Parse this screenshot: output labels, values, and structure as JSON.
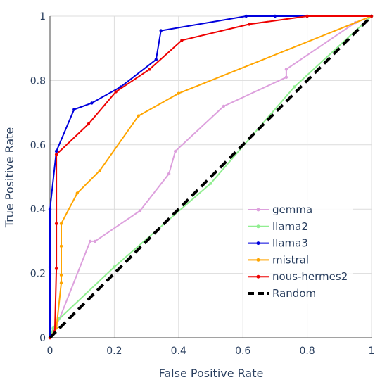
{
  "chart_data": {
    "type": "line",
    "title": "",
    "xlabel": "False Positive Rate",
    "ylabel": "True Positive Rate",
    "xlim": [
      0,
      1
    ],
    "ylim": [
      0,
      1
    ],
    "x_ticks": [
      0,
      0.2,
      0.4,
      0.6,
      0.8,
      1
    ],
    "y_ticks": [
      0,
      0.2,
      0.4,
      0.6,
      0.8,
      1
    ],
    "x_tick_labels": [
      "0",
      "0.2",
      "0.4",
      "0.6",
      "0.8",
      "1"
    ],
    "y_tick_labels": [
      "0",
      "0.2",
      "0.4",
      "0.6",
      "0.8",
      "1"
    ],
    "grid": true,
    "legend_position": "bottom-right",
    "series": [
      {
        "name": "gemma",
        "color": "#dda0dd",
        "dash": "solid",
        "markers": true,
        "points": [
          [
            0,
            0
          ],
          [
            0.01,
            0.02
          ],
          [
            0.02,
            0.04
          ],
          [
            0.03,
            0.06
          ],
          [
            0.125,
            0.3
          ],
          [
            0.14,
            0.3
          ],
          [
            0.28,
            0.395
          ],
          [
            0.37,
            0.51
          ],
          [
            0.39,
            0.58
          ],
          [
            0.54,
            0.72
          ],
          [
            0.735,
            0.81
          ],
          [
            0.735,
            0.835
          ],
          [
            0.95,
            0.98
          ],
          [
            1,
            1
          ]
        ]
      },
      {
        "name": "llama2",
        "color": "#90ee90",
        "dash": "solid",
        "markers": true,
        "points": [
          [
            0,
            0
          ],
          [
            0.01,
            0.03
          ],
          [
            0.03,
            0.06
          ],
          [
            0.2,
            0.22
          ],
          [
            0.5,
            0.48
          ],
          [
            0.76,
            0.78
          ],
          [
            1,
            1
          ]
        ]
      },
      {
        "name": "llama3",
        "color": "#0000dd",
        "dash": "solid",
        "markers": true,
        "points": [
          [
            0,
            0
          ],
          [
            0,
            0.22
          ],
          [
            0,
            0.4
          ],
          [
            0.02,
            0.58
          ],
          [
            0.075,
            0.71
          ],
          [
            0.13,
            0.73
          ],
          [
            0.22,
            0.78
          ],
          [
            0.33,
            0.865
          ],
          [
            0.345,
            0.955
          ],
          [
            0.61,
            1
          ],
          [
            0.7,
            1
          ],
          [
            0.8,
            1
          ],
          [
            1,
            1
          ]
        ]
      },
      {
        "name": "mistral",
        "color": "#ffa500",
        "dash": "solid",
        "markers": true,
        "points": [
          [
            0,
            0
          ],
          [
            0.02,
            0.03
          ],
          [
            0.035,
            0.17
          ],
          [
            0.035,
            0.195
          ],
          [
            0.035,
            0.285
          ],
          [
            0.035,
            0.355
          ],
          [
            0.085,
            0.45
          ],
          [
            0.155,
            0.52
          ],
          [
            0.275,
            0.69
          ],
          [
            0.4,
            0.76
          ],
          [
            1,
            1
          ]
        ]
      },
      {
        "name": "nous-hermes2",
        "color": "#ee0000",
        "dash": "solid",
        "markers": true,
        "points": [
          [
            0,
            0
          ],
          [
            0.015,
            0.02
          ],
          [
            0.02,
            0.215
          ],
          [
            0.02,
            0.355
          ],
          [
            0.02,
            0.57
          ],
          [
            0.12,
            0.665
          ],
          [
            0.205,
            0.765
          ],
          [
            0.31,
            0.835
          ],
          [
            0.41,
            0.925
          ],
          [
            0.62,
            0.975
          ],
          [
            0.8,
            1
          ],
          [
            1,
            1
          ]
        ]
      },
      {
        "name": "Random",
        "color": "#000000",
        "dash": "dash",
        "markers": false,
        "points": [
          [
            0,
            0
          ],
          [
            1,
            1
          ]
        ]
      }
    ]
  }
}
